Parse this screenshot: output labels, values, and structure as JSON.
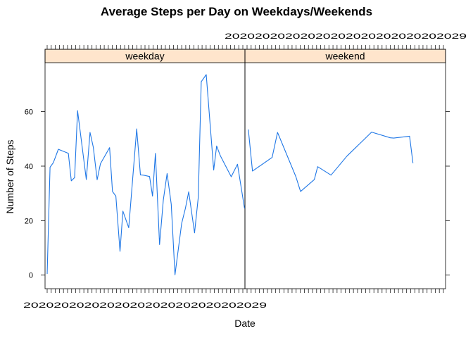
{
  "chart_data": {
    "type": "line",
    "title": "Average Steps per Day on Weekdays/Weekends",
    "xlabel": "Date",
    "ylabel": "Number of Steps",
    "ylim": [
      -5,
      78
    ],
    "yticks": [
      0,
      20,
      40,
      60
    ],
    "grid": false,
    "line_color": "#1f77e6",
    "strip_color": "#ffe5cc",
    "date_label_prefix": "20",
    "date_label_suffix": "29",
    "panels": [
      {
        "name": "weekday",
        "x_range": [
          0,
          48
        ],
        "ticks": 48,
        "x": [
          0.5,
          1.2,
          2.0,
          3.2,
          5.6,
          6.3,
          7.1,
          7.8,
          9.9,
          10.8,
          11.6,
          12.5,
          13.3,
          15.5,
          16.2,
          17.0,
          18.0,
          18.7,
          20.1,
          22.0,
          22.9,
          23.6,
          25.1,
          25.8,
          26.5,
          27.5,
          28.4,
          29.3,
          30.3,
          31.2,
          32.8,
          33.7,
          34.5,
          35.9,
          36.8,
          37.5,
          38.7,
          39.7,
          40.5,
          41.2,
          42.1,
          43.8,
          44.7,
          46.2,
          47.9
        ],
        "y": [
          0.4,
          39.6,
          41.3,
          46.2,
          44.7,
          34.6,
          35.8,
          60.4,
          35.1,
          52.4,
          46.9,
          35.0,
          40.9,
          46.8,
          30.7,
          29.0,
          8.7,
          23.5,
          17.4,
          53.7,
          36.8,
          36.7,
          36.2,
          29.0,
          44.7,
          11.2,
          27.5,
          37.3,
          26.0,
          0.1,
          19.0,
          24.5,
          30.6,
          15.5,
          28.6,
          71.0,
          73.6,
          54.1,
          38.6,
          47.4,
          43.8,
          38.8,
          36.1,
          40.7,
          24.5
        ]
      },
      {
        "name": "weekend",
        "x_range": [
          0,
          48
        ],
        "ticks": 48,
        "x": [
          0.8,
          1.8,
          6.5,
          7.8,
          12.2,
          13.3,
          16.6,
          17.4,
          20.6,
          24.4,
          28.5,
          30.3,
          34.8,
          35.6,
          39.4,
          40.2
        ],
        "y": [
          53.5,
          38.2,
          43.2,
          52.4,
          36.1,
          30.7,
          35.1,
          39.8,
          36.7,
          43.7,
          49.8,
          52.5,
          50.4,
          50.3,
          51.0,
          41.1
        ]
      }
    ]
  }
}
